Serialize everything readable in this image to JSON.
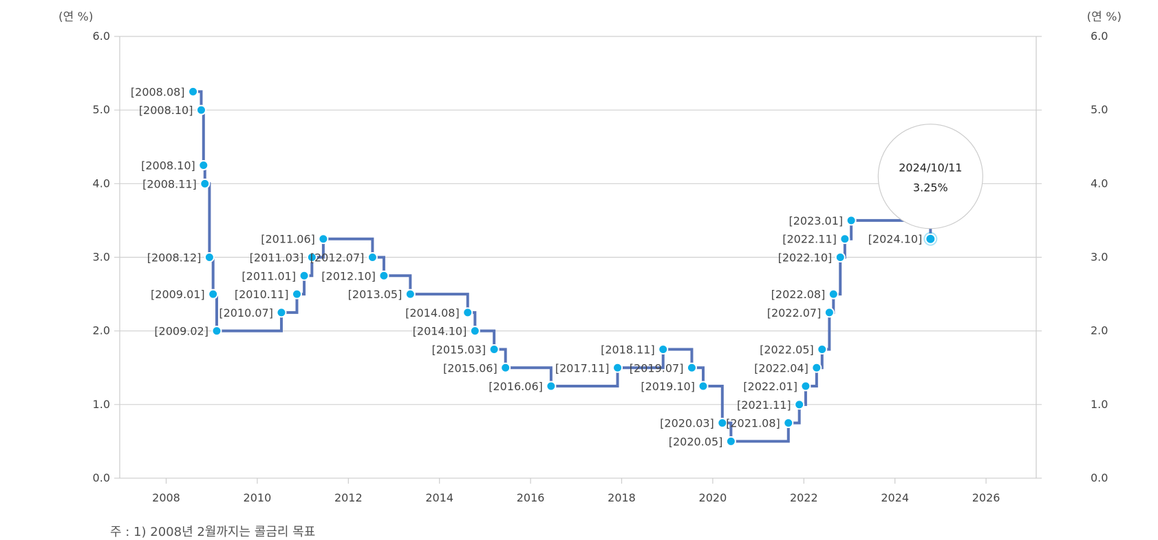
{
  "chart_data": {
    "type": "line",
    "step": true,
    "unit_left": "(연 %)",
    "unit_right": "(연 %)",
    "xlim": [
      2007,
      2027
    ],
    "ylim": [
      0,
      6
    ],
    "xticks": [
      "2008",
      "2010",
      "2012",
      "2014",
      "2016",
      "2018",
      "2020",
      "2022",
      "2024",
      "2026"
    ],
    "yticks": [
      "0.0",
      "1.0",
      "2.0",
      "3.0",
      "4.0",
      "5.0",
      "6.0"
    ],
    "grid": "horizontal",
    "line_color": "#5874b8",
    "point_color": "#0aaee8",
    "points": [
      {
        "label": "[2008.08]",
        "x": 2008.59,
        "y": 5.25
      },
      {
        "label": "[2008.10]",
        "x": 2008.77,
        "y": 5.0
      },
      {
        "label": "[2008.10]",
        "x": 2008.82,
        "y": 4.25
      },
      {
        "label": "[2008.11]",
        "x": 2008.85,
        "y": 4.0
      },
      {
        "label": "[2008.12]",
        "x": 2008.95,
        "y": 3.0
      },
      {
        "label": "[2009.01]",
        "x": 2009.03,
        "y": 2.5
      },
      {
        "label": "[2009.02]",
        "x": 2009.11,
        "y": 2.0
      },
      {
        "label": "[2010.07]",
        "x": 2010.53,
        "y": 2.25
      },
      {
        "label": "[2010.11]",
        "x": 2010.87,
        "y": 2.5
      },
      {
        "label": "[2011.01]",
        "x": 2011.03,
        "y": 2.75
      },
      {
        "label": "[2011.03]",
        "x": 2011.2,
        "y": 3.0
      },
      {
        "label": "[2011.06]",
        "x": 2011.45,
        "y": 3.25
      },
      {
        "label": "[2012.07]",
        "x": 2012.53,
        "y": 3.0
      },
      {
        "label": "[2012.10]",
        "x": 2012.78,
        "y": 2.75
      },
      {
        "label": "[2013.05]",
        "x": 2013.36,
        "y": 2.5
      },
      {
        "label": "[2014.08]",
        "x": 2014.62,
        "y": 2.25
      },
      {
        "label": "[2014.10]",
        "x": 2014.78,
        "y": 2.0
      },
      {
        "label": "[2015.03]",
        "x": 2015.2,
        "y": 1.75
      },
      {
        "label": "[2015.06]",
        "x": 2015.45,
        "y": 1.5
      },
      {
        "label": "[2016.06]",
        "x": 2016.45,
        "y": 1.25
      },
      {
        "label": "[2017.11]",
        "x": 2017.91,
        "y": 1.5
      },
      {
        "label": "[2018.11]",
        "x": 2018.91,
        "y": 1.75
      },
      {
        "label": "[2019.07]",
        "x": 2019.54,
        "y": 1.5
      },
      {
        "label": "[2019.10]",
        "x": 2019.79,
        "y": 1.25
      },
      {
        "label": "[2020.03]",
        "x": 2020.21,
        "y": 0.75
      },
      {
        "label": "[2020.05]",
        "x": 2020.4,
        "y": 0.5
      },
      {
        "label": "[2021.08]",
        "x": 2021.66,
        "y": 0.75
      },
      {
        "label": "[2021.11]",
        "x": 2021.9,
        "y": 1.0
      },
      {
        "label": "[2022.01]",
        "x": 2022.04,
        "y": 1.25
      },
      {
        "label": "[2022.04]",
        "x": 2022.28,
        "y": 1.5
      },
      {
        "label": "[2022.05]",
        "x": 2022.4,
        "y": 1.75
      },
      {
        "label": "[2022.07]",
        "x": 2022.56,
        "y": 2.25
      },
      {
        "label": "[2022.08]",
        "x": 2022.65,
        "y": 2.5
      },
      {
        "label": "[2022.10]",
        "x": 2022.8,
        "y": 3.0
      },
      {
        "label": "[2022.11]",
        "x": 2022.9,
        "y": 3.25
      },
      {
        "label": "[2023.01]",
        "x": 2023.04,
        "y": 3.5
      },
      {
        "label": "[2024.10]",
        "x": 2024.78,
        "y": 3.25
      }
    ],
    "tooltip": {
      "date": "2024/10/11",
      "value": "3.25%"
    }
  },
  "footnote": "주 : 1) 2008년 2월까지는 콜금리 목표"
}
